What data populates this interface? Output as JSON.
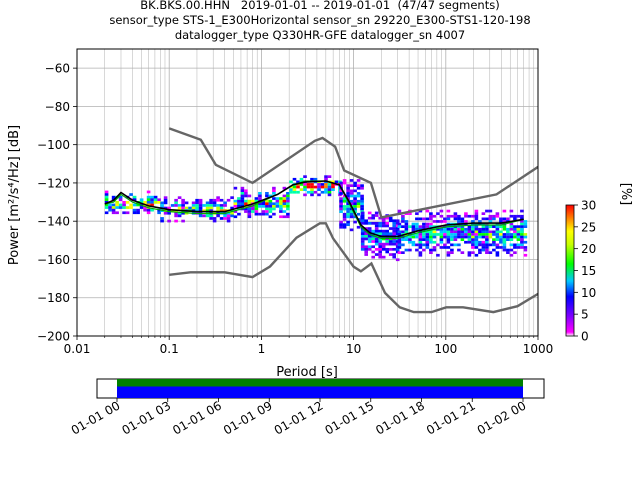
{
  "title_lines": [
    "BK.BKS.00.HHN   2019-01-01 -- 2019-01-01  (47/47 segments)",
    "sensor_type STS-1_E300Horizontal sensor_sn 29220_E300-STS1-120-198",
    "datalogger_type Q330HR-GFE datalogger_sn 4007"
  ],
  "chart_data": [
    {
      "type": "heatmap",
      "title": "BK.BKS.00.HHN   2019-01-01 -- 2019-01-01  (47/47 segments)",
      "xlabel": "Period [s]",
      "ylabel": "Power [m²/s⁴/Hz] [dB]",
      "xscale": "log",
      "xlim": [
        0.01,
        1000
      ],
      "ylim": [
        -200,
        -50
      ],
      "xticks": [
        "0.01",
        "0.1",
        "1",
        "10",
        "100",
        "1000"
      ],
      "yticks": [
        "−200",
        "−180",
        "−160",
        "−140",
        "−120",
        "−100",
        "−80",
        "−60"
      ],
      "grid": true,
      "colorbar": {
        "label": "[%]",
        "range": [
          0,
          30
        ],
        "ticks": [
          "0",
          "5",
          "10",
          "15",
          "20",
          "25",
          "30"
        ]
      },
      "nhnm": {
        "x": [
          0.1,
          0.22,
          0.32,
          0.8,
          3.8,
          4.6,
          6.3,
          7.9,
          15.4,
          20,
          354.8,
          1000
        ],
        "y": [
          -91.5,
          -97.4,
          -110.5,
          -120,
          -98,
          -96.5,
          -101,
          -113.5,
          -120,
          -138,
          -126,
          -111.6
        ]
      },
      "nlnm": {
        "x": [
          0.1,
          0.17,
          0.4,
          0.8,
          1.24,
          2.4,
          4.3,
          5,
          6,
          10,
          12,
          15.6,
          21.9,
          31.6,
          45,
          70,
          101,
          154,
          328,
          600,
          1000
        ],
        "y": [
          -168,
          -166.7,
          -166.7,
          -169.2,
          -163.7,
          -148.6,
          -141.1,
          -141.1,
          -149,
          -163.8,
          -166.2,
          -162.1,
          -177.5,
          -185,
          -187.5,
          -187.5,
          -185,
          -185,
          -187.5,
          -184.4,
          -178
        ]
      },
      "mean": {
        "x": [
          0.02,
          0.025,
          0.03,
          0.04,
          0.06,
          0.1,
          0.2,
          0.4,
          0.8,
          1.5,
          2.2,
          3,
          5,
          7,
          9,
          12,
          15,
          20,
          30,
          50,
          100,
          200,
          400,
          700
        ],
        "y": [
          -131,
          -129,
          -125,
          -129,
          -132,
          -134,
          -135,
          -135,
          -131,
          -126,
          -121,
          -119.5,
          -119,
          -121,
          -130,
          -142,
          -146,
          -148,
          -148,
          -145,
          -142,
          -141,
          -141,
          -139
        ]
      },
      "mode": {
        "x": [
          0.02,
          0.025,
          0.03,
          0.04,
          0.06,
          0.1,
          0.2,
          0.4,
          0.8,
          1.5,
          2.2,
          3,
          5,
          7,
          9,
          12,
          15,
          20,
          30,
          50,
          100,
          200,
          400,
          700
        ],
        "y": [
          -131,
          -130,
          -126,
          -130,
          -133,
          -135,
          -136,
          -136,
          -132,
          -126,
          -121,
          -119,
          -119,
          -121,
          -131,
          -143,
          -147,
          -149,
          -149,
          -146,
          -143,
          -142,
          -142,
          -139
        ]
      },
      "density_bands": [
        {
          "x0": 0.02,
          "x1": 0.08,
          "y0": -136,
          "y1": -124,
          "peak": 18
        },
        {
          "x0": 0.08,
          "x1": 0.5,
          "y0": -140,
          "y1": -127,
          "peak": 14
        },
        {
          "x0": 0.5,
          "x1": 2,
          "y0": -138,
          "y1": -122,
          "peak": 16
        },
        {
          "x0": 2,
          "x1": 7,
          "y0": -126,
          "y1": -116,
          "peak": 22
        },
        {
          "x0": 7,
          "x1": 12,
          "y0": -145,
          "y1": -118,
          "peak": 10
        },
        {
          "x0": 12,
          "x1": 30,
          "y0": -160,
          "y1": -135,
          "peak": 8
        },
        {
          "x0": 30,
          "x1": 700,
          "y0": -158,
          "y1": -134,
          "peak": 12
        }
      ]
    },
    {
      "type": "timeline",
      "xlim": [
        "2019-01-01 00",
        "2019-01-02 00"
      ],
      "xticks": [
        "01-01 00",
        "01-01 03",
        "01-01 06",
        "01-01 09",
        "01-01 12",
        "01-01 15",
        "01-01 18",
        "01-01 21",
        "01-02 00"
      ],
      "bars": [
        {
          "start_hour": 0,
          "end_hour": 24,
          "color": "#008000"
        },
        {
          "start_hour": 0,
          "end_hour": 24,
          "color": "#0000ff"
        }
      ]
    }
  ],
  "colors": {
    "nm_lines": "#666666",
    "mean": "#000000",
    "mode": "#00aa00",
    "frame": "#000000"
  }
}
